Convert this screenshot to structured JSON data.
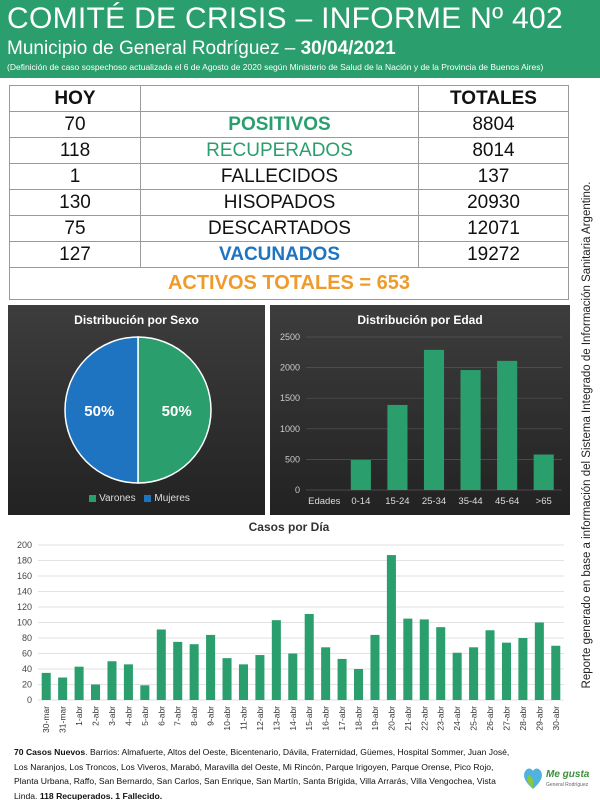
{
  "header": {
    "title": "COMITÉ DE CRISIS – INFORME Nº 402",
    "subtitle_prefix": "Municipio de General Rodríguez – ",
    "date": "30/04/2021",
    "note": "(Definición de caso sospechoso actualizada el 6 de Agosto de 2020 según Ministerio de Salud de la Nación y de la Provincia de Buenos Aires)"
  },
  "side_note": "Reporte generado en base a información del Sistema Integrado de Información Sanitaria Argentino.",
  "stats": {
    "col_hoy": "HOY",
    "col_totales": "TOTALES",
    "rows": [
      {
        "hoy": "70",
        "label": "POSITIVOS",
        "total": "8804"
      },
      {
        "hoy": "118",
        "label": "RECUPERADOS",
        "total": "8014"
      },
      {
        "hoy": "1",
        "label": "FALLECIDOS",
        "total": "137"
      },
      {
        "hoy": "130",
        "label": "HISOPADOS",
        "total": "20930"
      },
      {
        "hoy": "75",
        "label": "DESCARTADOS",
        "total": "12071"
      },
      {
        "hoy": "127",
        "label": "VACUNADOS",
        "total": "19272"
      }
    ],
    "activos": "ACTIVOS TOTALES = 653"
  },
  "colors": {
    "green": "#2a9e6c",
    "blue": "#1f74c2",
    "orange": "#f09a2a",
    "panel": "#2e2e2e"
  },
  "chart_data": [
    {
      "type": "pie",
      "title": "Distribución por Sexo",
      "categories": [
        "Varones",
        "Mujeres"
      ],
      "values": [
        50,
        50
      ],
      "data_labels": [
        "50%",
        "50%"
      ],
      "colors": [
        "#2a9e6c",
        "#1f74c2"
      ],
      "legend": "bottom"
    },
    {
      "type": "bar",
      "title": "Distribución por Edad",
      "categories": [
        "Edades",
        "0-14",
        "15-24",
        "25-34",
        "35-44",
        "45-64",
        ">65"
      ],
      "values": [
        0,
        490,
        1390,
        2290,
        1960,
        2110,
        580
      ],
      "ylim": [
        0,
        2500
      ],
      "yticks": [
        0,
        500,
        1000,
        1500,
        2000,
        2500
      ],
      "grid": true
    },
    {
      "type": "bar",
      "title": "Casos por Día",
      "categories": [
        "30-mar",
        "31-mar",
        "1-abr",
        "2-abr",
        "3-abr",
        "4-abr",
        "5-abr",
        "6-abr",
        "7-abr",
        "8-abr",
        "9-abr",
        "10-abr",
        "11-abr",
        "12-abr",
        "13-abr",
        "14-abr",
        "15-abr",
        "16-abr",
        "17-abr",
        "18-abr",
        "19-abr",
        "20-abr",
        "21-abr",
        "22-abr",
        "23-abr",
        "24-abr",
        "25-abr",
        "26-abr",
        "27-abr",
        "28-abr",
        "29-abr",
        "30-abr"
      ],
      "values": [
        35,
        29,
        43,
        20,
        50,
        46,
        19,
        91,
        75,
        72,
        84,
        54,
        46,
        58,
        103,
        60,
        111,
        68,
        53,
        40,
        84,
        187,
        105,
        104,
        94,
        61,
        68,
        90,
        74,
        80,
        100,
        70
      ],
      "ylim": [
        0,
        200
      ],
      "yticks": [
        0,
        20,
        40,
        60,
        80,
        100,
        120,
        140,
        160,
        180,
        200
      ],
      "grid": true
    }
  ],
  "footnote": {
    "bold_start": "70 Casos Nuevos",
    "text": ". Barrios: Almafuerte, Altos del Oeste, Bicentenario, Dávila, Fraternidad, Güemes, Hospital Sommer, Juan José, Los Naranjos, Los Troncos, Los Viveros, Marabó, Maravilla del Oeste, Mi Rincón, Parque Irigoyen, Parque Orense, Pico Rojo, Planta Urbana, Raffo, San Bernardo, San Carlos, San Enrique, San Martín, Santa Brígida, Villa Arrarás, Villa Vengochea, Vista Linda. ",
    "bold_end": "118 Recuperados. 1 Fallecido."
  },
  "logo": {
    "text": "Me gusta",
    "sub": "General Rodríguez"
  }
}
